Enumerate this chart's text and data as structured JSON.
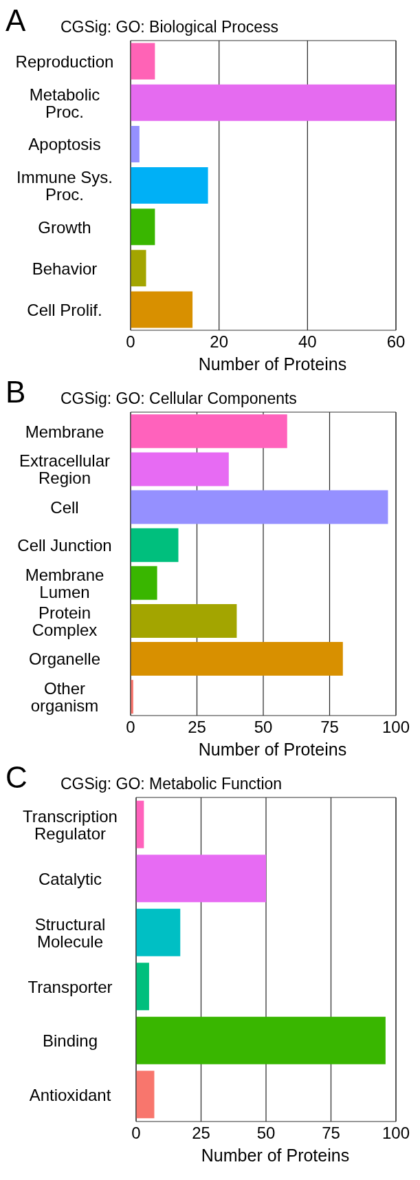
{
  "chart_data": [
    {
      "type": "bar",
      "orientation": "horizontal",
      "annotations": [
        "A"
      ],
      "title": "CGSig: GO: Biological Process",
      "xlabel": "Number of Proteins",
      "categories": [
        "Reproduction",
        "Metabolic\nProc.",
        "Apoptosis",
        "Immune Sys.\nProc.",
        "Growth",
        "Behavior",
        "Cell Prolif."
      ],
      "values": [
        5.5,
        60,
        2,
        17.5,
        5.5,
        3.5,
        14
      ],
      "colors": [
        "#ff63b6",
        "#e56bf0",
        "#9590ff",
        "#00b0f6",
        "#39b600",
        "#a3a500",
        "#d89000"
      ],
      "xlim": [
        0,
        60
      ],
      "xticks": [
        0,
        20,
        40,
        60
      ],
      "grid": "x"
    },
    {
      "type": "bar",
      "orientation": "horizontal",
      "annotations": [
        "B"
      ],
      "title": "CGSig: GO: Cellular Components",
      "xlabel": "Number of Proteins",
      "categories": [
        "Membrane",
        "Extracellular\nRegion",
        "Cell",
        "Cell Junction",
        "Membrane\nLumen",
        "Protein\nComplex",
        "Organelle",
        "Other\norganism"
      ],
      "values": [
        59,
        37,
        97,
        18,
        10,
        40,
        80,
        1
      ],
      "colors": [
        "#ff62bc",
        "#e76bf3",
        "#9590ff",
        "#00bf7d",
        "#39b600",
        "#a3a500",
        "#d89000",
        "#f8766d"
      ],
      "xlim": [
        0,
        100
      ],
      "xticks": [
        0,
        25,
        50,
        75,
        100
      ],
      "grid": "x"
    },
    {
      "type": "bar",
      "orientation": "horizontal",
      "annotations": [
        "C"
      ],
      "title": "CGSig: GO: Metabolic Function",
      "xlabel": "Number of Proteins",
      "categories": [
        "Transcription\nRegulator",
        "Catalytic",
        "Structural\nMolecule",
        "Transporter",
        "Binding",
        "Antioxidant"
      ],
      "values": [
        3,
        50,
        17,
        5,
        96,
        7
      ],
      "colors": [
        "#ff62bc",
        "#e76bf3",
        "#00bfc4",
        "#00bf7d",
        "#39b600",
        "#f8766d"
      ],
      "xlim": [
        0,
        100
      ],
      "xticks": [
        0,
        25,
        50,
        75,
        100
      ],
      "grid": "x"
    }
  ]
}
